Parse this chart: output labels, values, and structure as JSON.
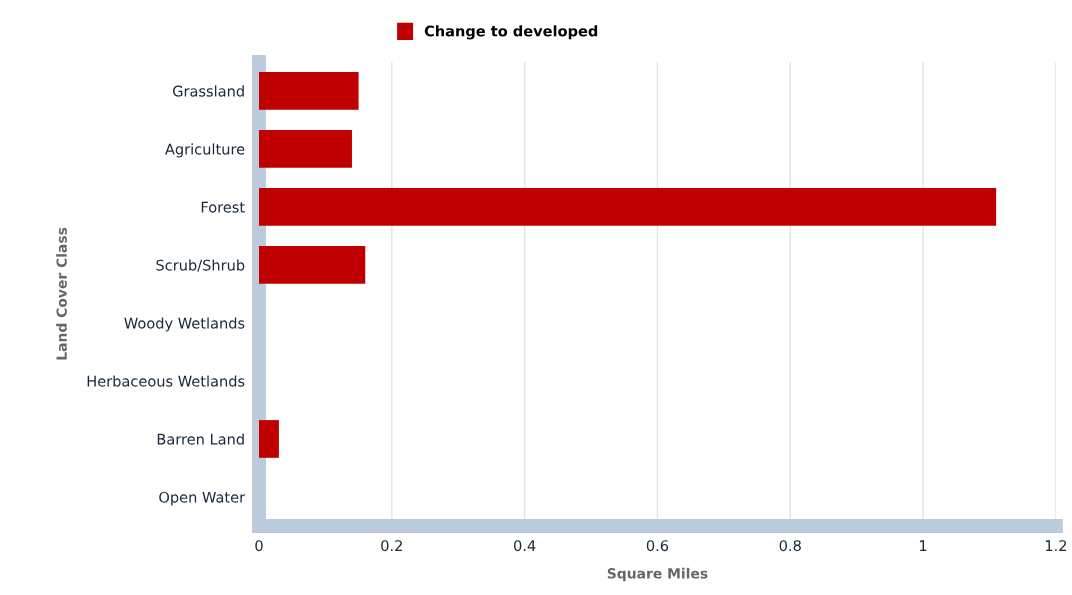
{
  "chart_data": {
    "type": "bar",
    "orientation": "horizontal",
    "xlabel": "Square Miles",
    "ylabel": "Land Cover Class",
    "categories": [
      "Grassland",
      "Agriculture",
      "Forest",
      "Scrub/Shrub",
      "Woody Wetlands",
      "Herbaceous Wetlands",
      "Barren Land",
      "Open Water"
    ],
    "series": [
      {
        "name": "Change to developed",
        "color": "#c00000",
        "values": [
          0.15,
          0.14,
          1.11,
          0.16,
          0,
          0,
          0.03,
          0
        ]
      }
    ],
    "xlim": [
      0,
      1.2
    ],
    "xticks": [
      0,
      0.2,
      0.4,
      0.6,
      0.8,
      1,
      1.2
    ],
    "grid": "x",
    "legend": "top"
  }
}
